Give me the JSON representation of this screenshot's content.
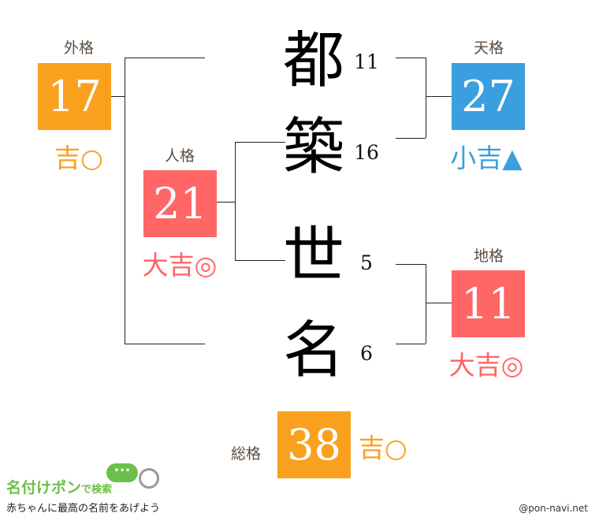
{
  "colors": {
    "good": "#f9a11e",
    "great": "#ff6666",
    "small": "#3a9fde"
  },
  "characters": [
    {
      "char": "都",
      "strokes": "11"
    },
    {
      "char": "築",
      "strokes": "16"
    },
    {
      "char": "世",
      "strokes": "5"
    },
    {
      "char": "名",
      "strokes": "6"
    }
  ],
  "gaikaku": {
    "label": "外格",
    "value": "17",
    "fortune": "吉○"
  },
  "jinkaku": {
    "label": "人格",
    "value": "21",
    "fortune": "大吉◎"
  },
  "tenkaku": {
    "label": "天格",
    "value": "27",
    "fortune": "小吉▲"
  },
  "chikaku": {
    "label": "地格",
    "value": "11",
    "fortune": "大吉◎"
  },
  "soukaku": {
    "label": "総格",
    "value": "38",
    "fortune": "吉○"
  },
  "logo": {
    "title": "名付けポン",
    "suffix": "で検索",
    "tagline": "赤ちゃんに最高の名前をあげよう"
  },
  "credit": "@pon-navi.net"
}
